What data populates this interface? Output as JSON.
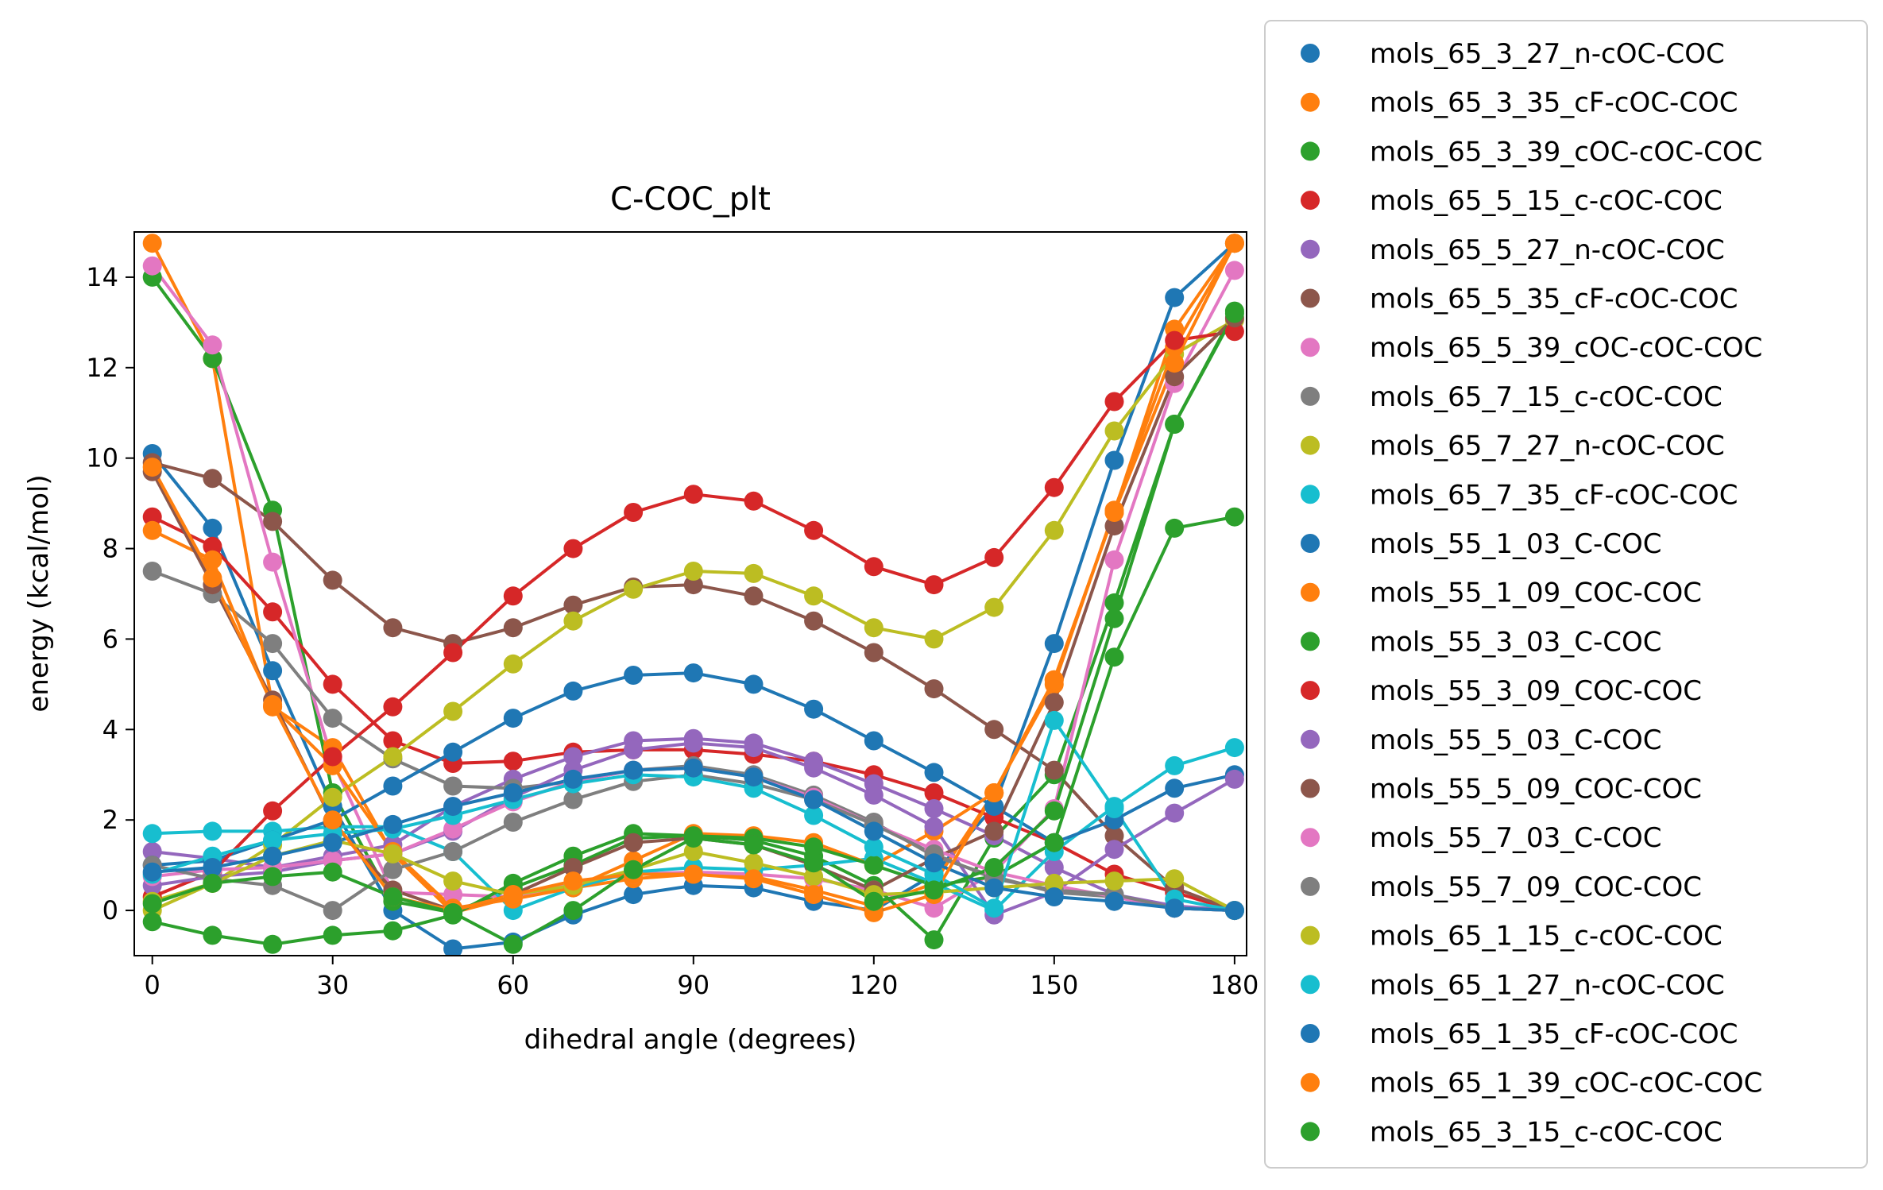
{
  "chart_data": {
    "type": "line",
    "title": "C-COC_plt",
    "xlabel": "dihedral angle (degrees)",
    "ylabel": "energy (kcal/mol)",
    "xlim": [
      -3,
      182
    ],
    "ylim": [
      -1.0,
      15.0
    ],
    "xticks": [
      0,
      30,
      60,
      90,
      120,
      150,
      180
    ],
    "yticks": [
      0,
      2,
      4,
      6,
      8,
      10,
      12,
      14
    ],
    "grid": false,
    "legend_position": "outside-right",
    "x": [
      0,
      10,
      20,
      30,
      40,
      50,
      60,
      70,
      80,
      90,
      100,
      110,
      120,
      130,
      140,
      150,
      160,
      170,
      180
    ],
    "series": [
      {
        "name": "mols_65_3_27_n-cOC-COC",
        "color": "#1f77b4",
        "values": [
          10.1,
          8.45,
          5.3,
          2.3,
          0.0,
          -0.85,
          -0.7,
          -0.1,
          0.35,
          0.55,
          0.5,
          0.2,
          0.0,
          0.8,
          2.3,
          5.9,
          9.95,
          13.55,
          14.75
        ]
      },
      {
        "name": "mols_65_3_35_cF-cOC-COC",
        "color": "#ff7f0e",
        "values": [
          14.75,
          12.2,
          4.5,
          3.6,
          1.25,
          -0.05,
          0.3,
          0.5,
          0.7,
          0.8,
          0.75,
          0.45,
          0.1,
          0.6,
          2.6,
          5.1,
          8.8,
          12.85,
          14.75
        ]
      },
      {
        "name": "mols_65_3_39_cOC-cOC-COC",
        "color": "#2ca02c",
        "values": [
          14.0,
          12.2,
          8.85,
          2.6,
          0.2,
          -0.05,
          0.5,
          1.0,
          1.6,
          1.65,
          1.55,
          1.2,
          0.55,
          -0.65,
          1.6,
          3.0,
          6.8,
          10.75,
          13.25
        ]
      },
      {
        "name": "mols_65_5_15_c-cOC-COC",
        "color": "#d62728",
        "values": [
          8.7,
          8.05,
          6.6,
          5.0,
          3.75,
          3.25,
          3.3,
          3.5,
          3.55,
          3.55,
          3.45,
          3.3,
          3.0,
          2.6,
          2.05,
          1.5,
          0.8,
          0.4,
          0.0
        ]
      },
      {
        "name": "mols_65_5_27_n-cOC-COC",
        "color": "#9467bd",
        "values": [
          1.3,
          1.15,
          0.95,
          1.2,
          1.45,
          2.3,
          2.9,
          3.4,
          3.75,
          3.8,
          3.7,
          3.3,
          2.8,
          2.25,
          1.65,
          0.95,
          0.35,
          0.1,
          0.0
        ]
      },
      {
        "name": "mols_65_5_35_cF-cOC-COC",
        "color": "#8c564b",
        "values": [
          9.9,
          9.55,
          8.6,
          7.3,
          6.25,
          5.9,
          6.25,
          6.75,
          7.15,
          7.2,
          6.95,
          6.4,
          5.7,
          4.9,
          4.0,
          3.1,
          1.65,
          0.5,
          0.0
        ]
      },
      {
        "name": "mols_65_5_39_cOC-cOC-COC",
        "color": "#e377c2",
        "values": [
          14.25,
          12.5,
          7.7,
          3.3,
          0.4,
          0.35,
          0.3,
          0.6,
          0.8,
          0.85,
          0.8,
          0.7,
          0.45,
          0.05,
          0.85,
          2.25,
          7.75,
          11.65,
          14.15
        ]
      },
      {
        "name": "mols_65_7_15_c-cOC-COC",
        "color": "#7f7f7f",
        "values": [
          7.5,
          7.0,
          5.9,
          4.25,
          3.35,
          2.75,
          2.7,
          2.85,
          3.1,
          3.2,
          3.0,
          2.55,
          1.95,
          1.2,
          0.75,
          0.4,
          0.3,
          0.05,
          0.0
        ]
      },
      {
        "name": "mols_65_7_27_n-cOC-COC",
        "color": "#bcbd22",
        "values": [
          0.0,
          0.6,
          1.45,
          2.5,
          3.4,
          4.4,
          5.45,
          6.4,
          7.1,
          7.5,
          7.45,
          6.95,
          6.25,
          6.0,
          6.7,
          8.4,
          10.6,
          12.3,
          13.05
        ]
      },
      {
        "name": "mols_65_7_35_cF-cOC-COC",
        "color": "#17becf",
        "values": [
          1.7,
          1.75,
          1.75,
          1.85,
          1.85,
          1.3,
          0.0,
          0.5,
          0.85,
          0.95,
          0.9,
          1.0,
          1.15,
          0.6,
          0.0,
          1.3,
          2.3,
          3.2,
          3.6
        ]
      },
      {
        "name": "mols_55_1_03_C-COC",
        "color": "#1f77b4",
        "values": [
          1.0,
          1.1,
          1.55,
          2.0,
          2.75,
          3.5,
          4.25,
          4.85,
          5.2,
          5.25,
          5.0,
          4.45,
          3.75,
          3.05,
          2.3,
          1.5,
          2.0,
          2.7,
          3.0
        ]
      },
      {
        "name": "mols_55_1_09_COC-COC",
        "color": "#ff7f0e",
        "values": [
          8.4,
          7.75,
          4.5,
          3.2,
          1.3,
          0.05,
          0.25,
          0.5,
          1.1,
          1.7,
          1.65,
          1.5,
          1.0,
          1.75,
          2.6,
          5.0,
          8.85,
          12.45,
          14.75
        ]
      },
      {
        "name": "mols_55_3_03_C-COC",
        "color": "#2ca02c",
        "values": [
          -0.25,
          -0.55,
          -0.75,
          -0.55,
          -0.45,
          -0.1,
          0.6,
          1.2,
          1.7,
          1.65,
          1.6,
          1.4,
          1.0,
          0.55,
          0.75,
          1.5,
          5.6,
          8.45,
          8.7
        ]
      },
      {
        "name": "mols_55_3_09_COC-COC",
        "color": "#d62728",
        "values": [
          0.3,
          0.85,
          2.2,
          3.4,
          4.5,
          5.7,
          6.95,
          8.0,
          8.8,
          9.2,
          9.05,
          8.4,
          7.6,
          7.2,
          7.8,
          9.35,
          11.25,
          12.6,
          12.8
        ]
      },
      {
        "name": "mols_55_5_03_C-COC",
        "color": "#9467bd",
        "values": [
          0.55,
          0.75,
          0.85,
          1.1,
          1.25,
          1.75,
          2.5,
          3.1,
          3.55,
          3.7,
          3.6,
          3.15,
          2.55,
          1.85,
          -0.1,
          0.4,
          1.35,
          2.15,
          2.9
        ]
      },
      {
        "name": "mols_55_5_09_COC-COC",
        "color": "#8c564b",
        "values": [
          9.7,
          7.2,
          4.65,
          1.95,
          0.45,
          0.0,
          0.35,
          0.95,
          1.5,
          1.6,
          1.45,
          1.0,
          0.45,
          1.15,
          1.75,
          4.6,
          8.5,
          11.8,
          13.1
        ]
      },
      {
        "name": "mols_55_7_03_C-COC",
        "color": "#e377c2",
        "values": [
          0.75,
          0.9,
          0.95,
          1.1,
          1.25,
          1.8,
          2.4,
          2.85,
          3.1,
          3.15,
          2.95,
          2.5,
          1.9,
          1.35,
          0.85,
          0.55,
          0.3,
          0.05,
          0.0
        ]
      },
      {
        "name": "mols_55_7_09_COC-COC",
        "color": "#7f7f7f",
        "values": [
          1.0,
          0.7,
          0.55,
          0.0,
          0.9,
          1.3,
          1.95,
          2.45,
          2.85,
          3.0,
          2.8,
          2.45,
          1.9,
          1.25,
          0.7,
          0.45,
          0.35,
          0.05,
          0.0
        ]
      },
      {
        "name": "mols_65_1_15_c-cOC-COC",
        "color": "#bcbd22",
        "values": [
          0.2,
          0.6,
          1.2,
          1.55,
          1.25,
          0.65,
          0.35,
          0.55,
          0.9,
          1.3,
          1.05,
          0.75,
          0.35,
          0.4,
          0.5,
          0.6,
          0.65,
          0.7,
          0.0
        ]
      },
      {
        "name": "mols_65_1_27_n-cOC-COC",
        "color": "#17becf",
        "values": [
          0.8,
          1.2,
          1.55,
          1.7,
          1.8,
          2.1,
          2.45,
          2.8,
          3.0,
          2.95,
          2.7,
          2.1,
          1.4,
          0.8,
          0.05,
          4.2,
          2.25,
          0.25,
          0.0
        ]
      },
      {
        "name": "mols_65_1_35_cF-cOC-COC",
        "color": "#1f77b4",
        "values": [
          0.85,
          0.95,
          1.2,
          1.5,
          1.9,
          2.3,
          2.6,
          2.9,
          3.1,
          3.15,
          2.95,
          2.45,
          1.75,
          1.05,
          0.5,
          0.3,
          0.2,
          0.05,
          0.0
        ]
      },
      {
        "name": "mols_65_1_39_cOC-cOC-COC",
        "color": "#ff7f0e",
        "values": [
          9.8,
          7.35,
          4.55,
          2.0,
          0.3,
          0.0,
          0.35,
          0.65,
          0.8,
          0.8,
          0.7,
          0.35,
          -0.05,
          0.35,
          2.6,
          5.1,
          8.8,
          12.1,
          14.75
        ]
      },
      {
        "name": "mols_65_3_15_c-cOC-COC",
        "color": "#2ca02c",
        "values": [
          0.15,
          0.6,
          0.75,
          0.85,
          0.3,
          -0.05,
          -0.75,
          0.0,
          0.9,
          1.6,
          1.45,
          1.05,
          0.2,
          0.45,
          0.95,
          2.2,
          6.45,
          10.75,
          13.2
        ]
      }
    ]
  }
}
